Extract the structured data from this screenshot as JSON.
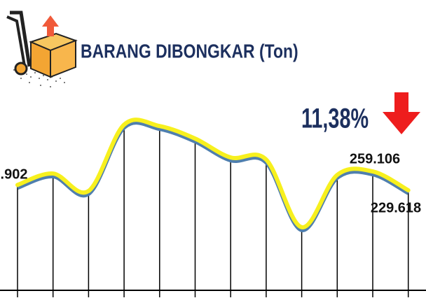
{
  "chart_data": {
    "type": "line",
    "title": "BARANG DIBONGKAR (Ton)",
    "annotation": "11,38%",
    "categories": [
      null,
      null,
      null,
      null,
      null,
      null,
      null,
      null,
      null,
      null,
      null,
      null
    ],
    "series": [
      {
        "name": null,
        "color": "#f7f01e",
        "values": [
          239902,
          261800,
          228300,
          355600,
          353000,
          328900,
          292600,
          288600,
          158600,
          259106,
          265800,
          229618
        ],
        "value_labels": {
          "0": ".902",
          "9": "259.106",
          "11": "229.618"
        }
      }
    ],
    "ylim": [
      20000,
      360000
    ]
  }
}
